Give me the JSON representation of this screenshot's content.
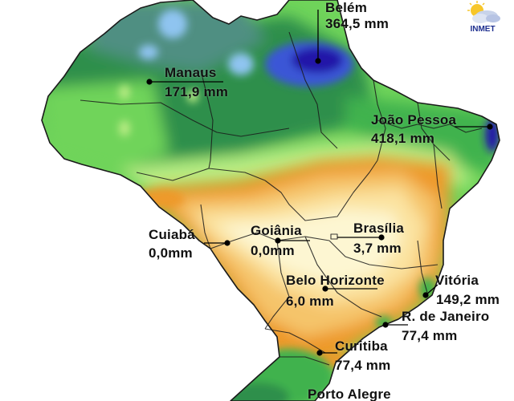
{
  "logo": {
    "text": "INMET",
    "icon": "sun-cloud-icon"
  },
  "cities": [
    {
      "id": "belem",
      "name": "Belém",
      "value": "364,5 mm"
    },
    {
      "id": "manaus",
      "name": "Manaus",
      "value": "171,9 mm"
    },
    {
      "id": "joao-pessoa",
      "name": "João Pessoa",
      "value": "418,1 mm"
    },
    {
      "id": "cuiaba",
      "name": "Cuiabá",
      "value": "0,0mm"
    },
    {
      "id": "goiania",
      "name": "Goiânia",
      "value": "0,0mm"
    },
    {
      "id": "brasilia",
      "name": "Brasília",
      "value": "3,7 mm"
    },
    {
      "id": "belo-horizonte",
      "name": "Belo Horizonte",
      "value": "6,0 mm"
    },
    {
      "id": "vitoria",
      "name": "Vitória",
      "value": "149,2 mm"
    },
    {
      "id": "rio-de-janeiro",
      "name": "R. de Janeiro",
      "value": "77,4 mm"
    },
    {
      "id": "curitiba",
      "name": "Curitiba",
      "value": "77,4 mm"
    },
    {
      "id": "porto-alegre",
      "name": "Porto Alegre",
      "value": ""
    }
  ],
  "colors": {
    "very_dry": "#fdf6d2",
    "dry": "#fbe3a0",
    "low": "#f5c46a",
    "moderate": "#ee9a2a",
    "green_light": "#b9ec84",
    "green": "#6fd45a",
    "green_dark": "#3fb24e",
    "forest": "#2f8f4c",
    "teal": "#4f8f82",
    "sky": "#8fc4f0",
    "blue": "#3a56d6",
    "indigo": "#2418a8",
    "boundary": "#1a1a1a",
    "marker": "#000000"
  }
}
